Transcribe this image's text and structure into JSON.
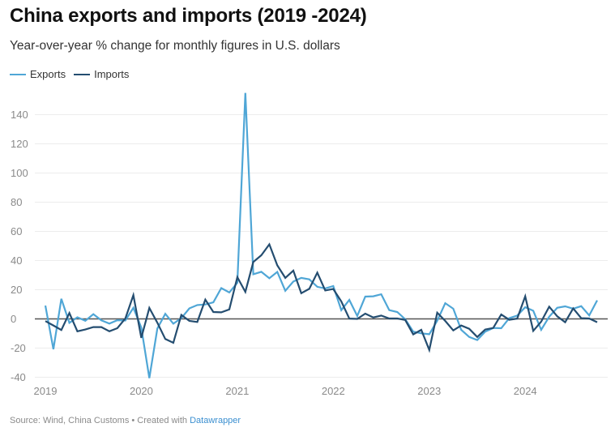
{
  "header": {
    "title": "China exports and imports (2019 -2024)",
    "subtitle": "Year-over-year % change for monthly figures in U.S. dollars"
  },
  "footer": {
    "source_text": "Source: Wind, China Customs • Created with ",
    "link_label": "Datawrapper"
  },
  "chart_data": {
    "type": "line",
    "title": "China exports and imports (2019 -2024)",
    "subtitle": "Year-over-year % change for monthly figures in U.S. dollars",
    "xlabel": "",
    "ylabel": "",
    "x_start": "2019-01",
    "x_end": "2024-10",
    "x_frequency": "monthly",
    "x_ticks": [
      "2019",
      "2020",
      "2021",
      "2022",
      "2023",
      "2024"
    ],
    "y_ticks": [
      -40,
      -20,
      0,
      20,
      40,
      60,
      80,
      100,
      120,
      140
    ],
    "ylim": [
      -40,
      155
    ],
    "grid": true,
    "zero_line": true,
    "legend_position": "top-left",
    "series": [
      {
        "name": "Exports",
        "color": "#4fa6d6",
        "values": [
          9.1,
          -20.8,
          13.8,
          -2.7,
          1.1,
          -1.3,
          3.3,
          -1.0,
          -3.2,
          -0.9,
          -1.1,
          7.6,
          -6.0,
          -40.6,
          -6.6,
          3.5,
          -3.3,
          0.5,
          7.2,
          9.5,
          9.9,
          11.4,
          21.1,
          18.1,
          24.7,
          154.9,
          30.6,
          32.3,
          27.9,
          32.2,
          19.3,
          25.6,
          28.1,
          27.1,
          22.0,
          20.9,
          22.5,
          6.0,
          13.0,
          2.0,
          15.3,
          15.5,
          16.9,
          6.0,
          4.7,
          -0.3,
          -8.7,
          -9.9,
          -10.5,
          -1.3,
          10.8,
          7.0,
          -7.5,
          -12.4,
          -14.5,
          -8.8,
          -6.2,
          -6.4,
          0.5,
          2.3,
          8.0,
          5.6,
          -7.5,
          1.5,
          7.6,
          8.6,
          7.0,
          8.7,
          2.4,
          12.7
        ]
      },
      {
        "name": "Imports",
        "color": "#244d70",
        "values": [
          -1.5,
          -4.5,
          -7.6,
          4.0,
          -8.5,
          -7.3,
          -5.6,
          -5.6,
          -8.5,
          -6.4,
          0.3,
          16.3,
          -13.0,
          7.5,
          -2.6,
          -13.8,
          -16.4,
          2.7,
          -1.4,
          -2.1,
          13.2,
          4.7,
          4.5,
          6.5,
          28.6,
          18.5,
          39.0,
          43.6,
          51.1,
          36.7,
          28.1,
          33.1,
          17.6,
          20.6,
          31.7,
          19.5,
          20.5,
          12.0,
          0.2,
          0.0,
          3.6,
          1.0,
          2.3,
          0.3,
          0.3,
          -0.7,
          -10.6,
          -7.5,
          -21.3,
          4.2,
          -1.4,
          -7.9,
          -4.5,
          -6.8,
          -12.4,
          -7.3,
          -6.2,
          3.0,
          -0.6,
          0.2,
          15.5,
          -8.2,
          -1.9,
          8.4,
          1.8,
          -2.3,
          7.2,
          0.5,
          0.3,
          -2.3
        ]
      }
    ]
  }
}
